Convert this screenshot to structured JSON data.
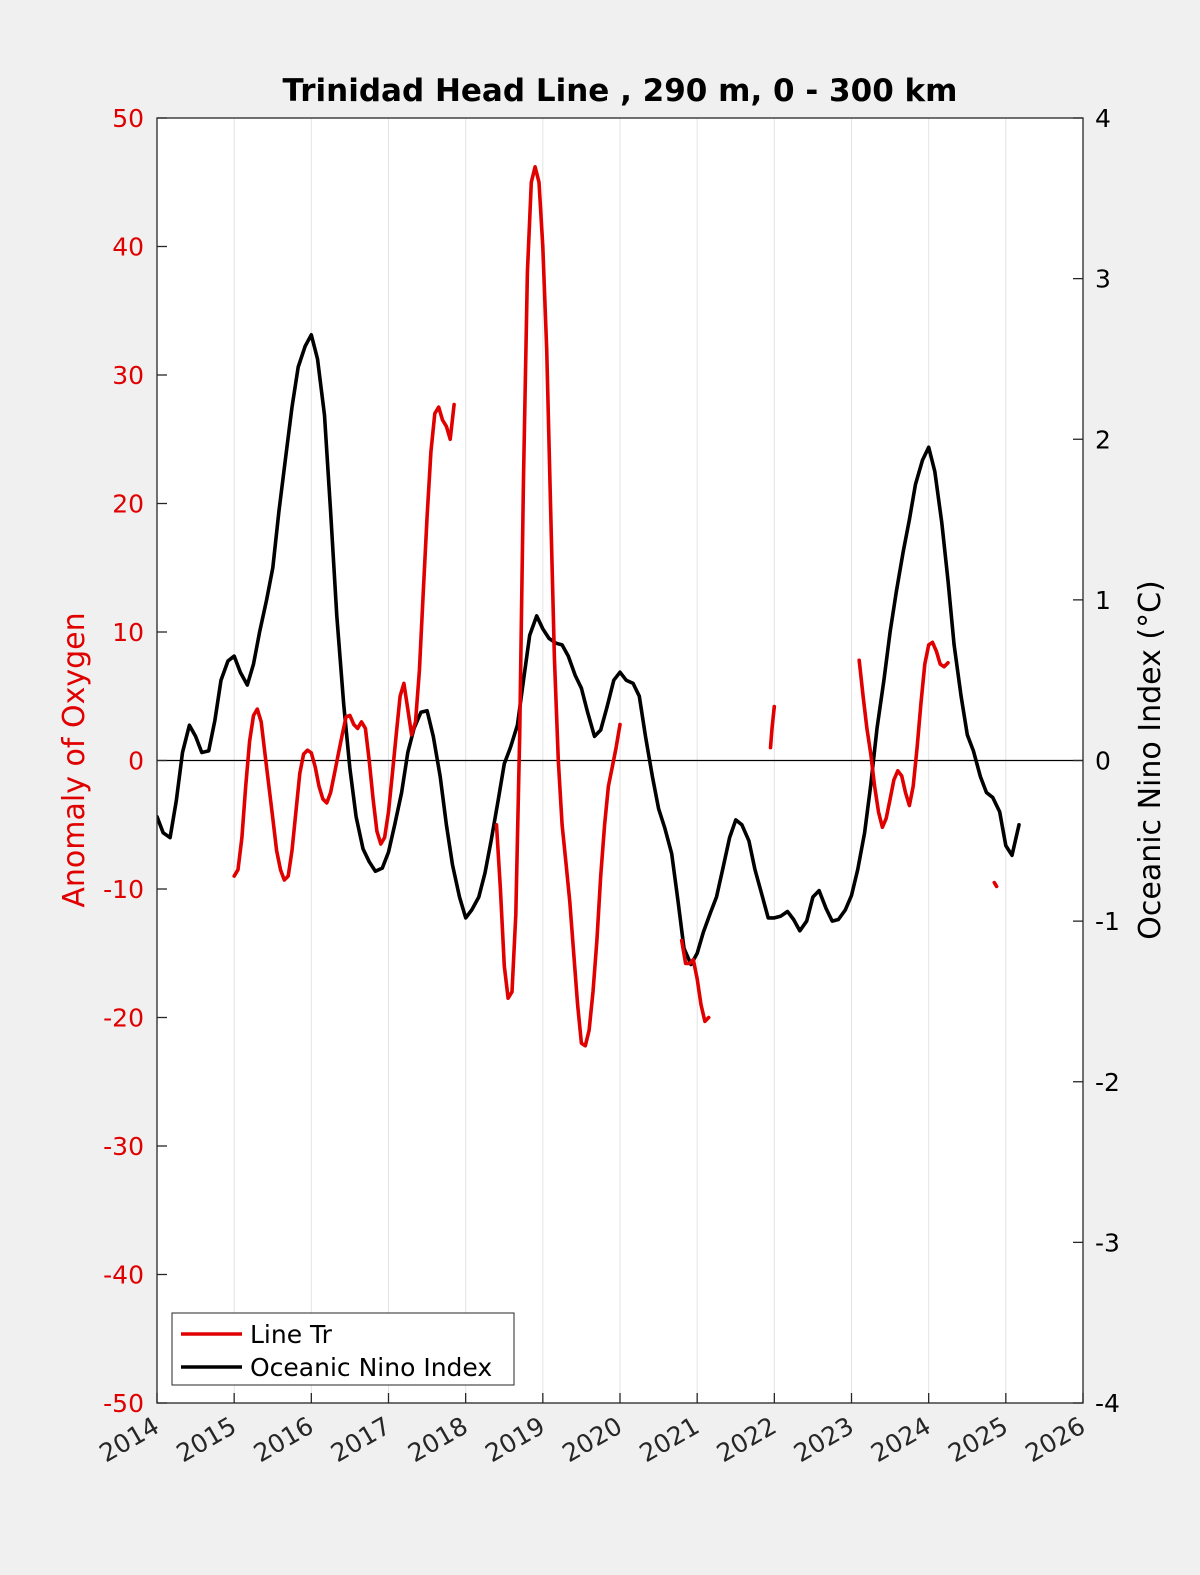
{
  "chart_data": {
    "type": "line",
    "title": "Trinidad Head Line , 290 m, 0 - 300 km",
    "xlabel": "",
    "ylabel_left": "Anomaly of Oxygen",
    "ylabel_right": "Oceanic Nino Index (°C)",
    "xlim": [
      2014,
      2026
    ],
    "ylim_left": [
      -50,
      50
    ],
    "ylim_right": [
      -4,
      4
    ],
    "x_ticks": [
      "2014",
      "2015",
      "2016",
      "2017",
      "2018",
      "2019",
      "2020",
      "2021",
      "2022",
      "2023",
      "2024",
      "2025",
      "2026"
    ],
    "y_left_ticks": [
      "50",
      "40",
      "30",
      "20",
      "10",
      "0",
      "-10",
      "-20",
      "-30",
      "-40",
      "-50"
    ],
    "y_right_ticks": [
      "4",
      "3",
      "2",
      "1",
      "0",
      "-1",
      "-2",
      "-3",
      "-4"
    ],
    "grid": "vertical",
    "legend_position": "bottom-left",
    "colors": {
      "oxygen": "#e00000",
      "oni": "#000000",
      "left_axis": "#e00000",
      "right_axis": "#000000"
    },
    "series": [
      {
        "name": "Line Tr",
        "axis": "left",
        "segments": [
          [
            [
              2015.0,
              -9
            ],
            [
              2015.05,
              -8.5
            ],
            [
              2015.1,
              -6
            ],
            [
              2015.15,
              -2
            ],
            [
              2015.2,
              1.5
            ],
            [
              2015.25,
              3.5
            ],
            [
              2015.3,
              4
            ],
            [
              2015.35,
              3
            ],
            [
              2015.4,
              0.5
            ],
            [
              2015.45,
              -2
            ],
            [
              2015.5,
              -4.5
            ],
            [
              2015.55,
              -7
            ],
            [
              2015.6,
              -8.5
            ],
            [
              2015.65,
              -9.3
            ],
            [
              2015.7,
              -9
            ],
            [
              2015.75,
              -7
            ],
            [
              2015.8,
              -4
            ],
            [
              2015.85,
              -1
            ],
            [
              2015.9,
              0.5
            ],
            [
              2015.95,
              0.8
            ],
            [
              2016.0,
              0.6
            ],
            [
              2016.05,
              -0.5
            ],
            [
              2016.1,
              -2
            ],
            [
              2016.15,
              -3
            ],
            [
              2016.2,
              -3.3
            ],
            [
              2016.25,
              -2.5
            ],
            [
              2016.3,
              -1
            ],
            [
              2016.35,
              0.5
            ],
            [
              2016.4,
              2
            ],
            [
              2016.45,
              3.4
            ],
            [
              2016.5,
              3.5
            ],
            [
              2016.55,
              2.8
            ],
            [
              2016.6,
              2.5
            ],
            [
              2016.65,
              3
            ],
            [
              2016.7,
              2.5
            ],
            [
              2016.75,
              0
            ],
            [
              2016.8,
              -3
            ],
            [
              2016.85,
              -5.5
            ],
            [
              2016.9,
              -6.5
            ],
            [
              2016.95,
              -6
            ],
            [
              2017.0,
              -4
            ],
            [
              2017.05,
              -1
            ],
            [
              2017.1,
              2
            ],
            [
              2017.15,
              5
            ],
            [
              2017.2,
              6
            ],
            [
              2017.25,
              4
            ],
            [
              2017.3,
              2
            ],
            [
              2017.35,
              3
            ],
            [
              2017.4,
              7
            ],
            [
              2017.45,
              13
            ],
            [
              2017.5,
              19
            ],
            [
              2017.55,
              24
            ],
            [
              2017.6,
              27
            ],
            [
              2017.65,
              27.5
            ],
            [
              2017.7,
              26.5
            ],
            [
              2017.75,
              26
            ],
            [
              2017.8,
              25
            ],
            [
              2017.85,
              27.7
            ]
          ],
          [
            [
              2018.4,
              -5
            ],
            [
              2018.45,
              -10
            ],
            [
              2018.5,
              -16
            ],
            [
              2018.55,
              -18.5
            ],
            [
              2018.6,
              -18
            ],
            [
              2018.65,
              -12
            ],
            [
              2018.7,
              2
            ],
            [
              2018.75,
              22
            ],
            [
              2018.8,
              38
            ],
            [
              2018.85,
              45
            ],
            [
              2018.9,
              46.2
            ],
            [
              2018.95,
              45
            ],
            [
              2019.0,
              40
            ],
            [
              2019.05,
              32
            ],
            [
              2019.1,
              20
            ],
            [
              2019.15,
              8
            ],
            [
              2019.2,
              0
            ],
            [
              2019.25,
              -5
            ],
            [
              2019.3,
              -8
            ],
            [
              2019.35,
              -11
            ],
            [
              2019.4,
              -15
            ],
            [
              2019.45,
              -19
            ],
            [
              2019.5,
              -22
            ],
            [
              2019.55,
              -22.2
            ],
            [
              2019.6,
              -21
            ],
            [
              2019.65,
              -18
            ],
            [
              2019.7,
              -14
            ],
            [
              2019.75,
              -9
            ],
            [
              2019.8,
              -5
            ],
            [
              2019.85,
              -2
            ],
            [
              2019.9,
              -0.5
            ],
            [
              2019.95,
              1
            ],
            [
              2020.0,
              2.8
            ]
          ],
          [
            [
              2020.8,
              -14
            ],
            [
              2020.85,
              -15.8
            ],
            [
              2020.9,
              -15.8
            ],
            [
              2020.95,
              -15.5
            ],
            [
              2021.0,
              -17
            ],
            [
              2021.05,
              -19
            ],
            [
              2021.1,
              -20.3
            ],
            [
              2021.15,
              -20
            ]
          ],
          [
            [
              2021.95,
              1
            ],
            [
              2021.97,
              2.5
            ],
            [
              2022.0,
              4.2
            ]
          ],
          [
            [
              2023.1,
              7.8
            ],
            [
              2023.15,
              5
            ],
            [
              2023.2,
              2.5
            ],
            [
              2023.25,
              0.5
            ],
            [
              2023.3,
              -2
            ],
            [
              2023.35,
              -4
            ],
            [
              2023.4,
              -5.2
            ],
            [
              2023.45,
              -4.5
            ],
            [
              2023.5,
              -3
            ],
            [
              2023.55,
              -1.5
            ],
            [
              2023.6,
              -0.8
            ],
            [
              2023.65,
              -1.2
            ],
            [
              2023.7,
              -2.5
            ],
            [
              2023.75,
              -3.5
            ],
            [
              2023.8,
              -2
            ],
            [
              2023.85,
              1
            ],
            [
              2023.9,
              4.5
            ],
            [
              2023.95,
              7.5
            ],
            [
              2024.0,
              9
            ],
            [
              2024.05,
              9.2
            ],
            [
              2024.1,
              8.5
            ],
            [
              2024.15,
              7.5
            ],
            [
              2024.2,
              7.3
            ],
            [
              2024.25,
              7.6
            ]
          ],
          [
            [
              2024.85,
              -9.5
            ],
            [
              2024.88,
              -9.8
            ]
          ]
        ]
      },
      {
        "name": "Oceanic Nino Index",
        "axis": "right",
        "segments": [
          [
            [
              2014.0,
              -0.35
            ],
            [
              2014.08,
              -0.45
            ],
            [
              2014.17,
              -0.48
            ],
            [
              2014.25,
              -0.25
            ],
            [
              2014.33,
              0.05
            ],
            [
              2014.42,
              0.22
            ],
            [
              2014.5,
              0.15
            ],
            [
              2014.58,
              0.05
            ],
            [
              2014.67,
              0.06
            ],
            [
              2014.75,
              0.25
            ],
            [
              2014.83,
              0.5
            ],
            [
              2014.92,
              0.62
            ],
            [
              2015.0,
              0.65
            ],
            [
              2015.08,
              0.55
            ],
            [
              2015.17,
              0.47
            ],
            [
              2015.25,
              0.6
            ],
            [
              2015.33,
              0.8
            ],
            [
              2015.42,
              1.0
            ],
            [
              2015.5,
              1.2
            ],
            [
              2015.58,
              1.55
            ],
            [
              2015.67,
              1.9
            ],
            [
              2015.75,
              2.2
            ],
            [
              2015.83,
              2.45
            ],
            [
              2015.92,
              2.58
            ],
            [
              2016.0,
              2.65
            ],
            [
              2016.08,
              2.5
            ],
            [
              2016.17,
              2.15
            ],
            [
              2016.25,
              1.55
            ],
            [
              2016.33,
              0.9
            ],
            [
              2016.42,
              0.35
            ],
            [
              2016.5,
              -0.05
            ],
            [
              2016.58,
              -0.35
            ],
            [
              2016.67,
              -0.55
            ],
            [
              2016.75,
              -0.63
            ],
            [
              2016.83,
              -0.69
            ],
            [
              2016.92,
              -0.67
            ],
            [
              2017.0,
              -0.57
            ],
            [
              2017.08,
              -0.4
            ],
            [
              2017.17,
              -0.2
            ],
            [
              2017.25,
              0.05
            ],
            [
              2017.33,
              0.2
            ],
            [
              2017.42,
              0.3
            ],
            [
              2017.5,
              0.31
            ],
            [
              2017.58,
              0.15
            ],
            [
              2017.67,
              -0.1
            ],
            [
              2017.75,
              -0.4
            ],
            [
              2017.83,
              -0.65
            ],
            [
              2017.92,
              -0.85
            ],
            [
              2018.0,
              -0.98
            ],
            [
              2018.08,
              -0.93
            ],
            [
              2018.17,
              -0.85
            ],
            [
              2018.25,
              -0.7
            ],
            [
              2018.33,
              -0.5
            ],
            [
              2018.42,
              -0.25
            ],
            [
              2018.5,
              -0.02
            ],
            [
              2018.58,
              0.08
            ],
            [
              2018.67,
              0.22
            ],
            [
              2018.75,
              0.5
            ],
            [
              2018.83,
              0.78
            ],
            [
              2018.92,
              0.9
            ],
            [
              2019.0,
              0.82
            ],
            [
              2019.08,
              0.76
            ],
            [
              2019.17,
              0.73
            ],
            [
              2019.25,
              0.72
            ],
            [
              2019.33,
              0.65
            ],
            [
              2019.42,
              0.53
            ],
            [
              2019.5,
              0.45
            ],
            [
              2019.58,
              0.3
            ],
            [
              2019.67,
              0.15
            ],
            [
              2019.75,
              0.19
            ],
            [
              2019.83,
              0.33
            ],
            [
              2019.92,
              0.5
            ],
            [
              2020.0,
              0.55
            ],
            [
              2020.08,
              0.5
            ],
            [
              2020.17,
              0.48
            ],
            [
              2020.25,
              0.4
            ],
            [
              2020.33,
              0.15
            ],
            [
              2020.42,
              -0.1
            ],
            [
              2020.5,
              -0.3
            ],
            [
              2020.58,
              -0.42
            ],
            [
              2020.67,
              -0.58
            ],
            [
              2020.75,
              -0.87
            ],
            [
              2020.83,
              -1.17
            ],
            [
              2020.92,
              -1.27
            ],
            [
              2021.0,
              -1.2
            ],
            [
              2021.08,
              -1.07
            ],
            [
              2021.17,
              -0.95
            ],
            [
              2021.25,
              -0.85
            ],
            [
              2021.33,
              -0.68
            ],
            [
              2021.42,
              -0.48
            ],
            [
              2021.5,
              -0.37
            ],
            [
              2021.58,
              -0.4
            ],
            [
              2021.67,
              -0.5
            ],
            [
              2021.75,
              -0.68
            ],
            [
              2021.83,
              -0.82
            ],
            [
              2021.92,
              -0.98
            ],
            [
              2022.0,
              -0.98
            ],
            [
              2022.08,
              -0.97
            ],
            [
              2022.17,
              -0.94
            ],
            [
              2022.25,
              -0.99
            ],
            [
              2022.33,
              -1.06
            ],
            [
              2022.42,
              -1.0
            ],
            [
              2022.5,
              -0.85
            ],
            [
              2022.58,
              -0.81
            ],
            [
              2022.67,
              -0.92
            ],
            [
              2022.75,
              -1.0
            ],
            [
              2022.83,
              -0.99
            ],
            [
              2022.92,
              -0.93
            ],
            [
              2023.0,
              -0.84
            ],
            [
              2023.08,
              -0.68
            ],
            [
              2023.17,
              -0.45
            ],
            [
              2023.25,
              -0.15
            ],
            [
              2023.33,
              0.2
            ],
            [
              2023.42,
              0.5
            ],
            [
              2023.5,
              0.8
            ],
            [
              2023.58,
              1.05
            ],
            [
              2023.67,
              1.3
            ],
            [
              2023.75,
              1.5
            ],
            [
              2023.83,
              1.72
            ],
            [
              2023.92,
              1.87
            ],
            [
              2024.0,
              1.95
            ],
            [
              2024.08,
              1.8
            ],
            [
              2024.17,
              1.48
            ],
            [
              2024.25,
              1.12
            ],
            [
              2024.33,
              0.72
            ],
            [
              2024.42,
              0.4
            ],
            [
              2024.5,
              0.16
            ],
            [
              2024.58,
              0.06
            ],
            [
              2024.67,
              -0.1
            ],
            [
              2024.75,
              -0.2
            ],
            [
              2024.83,
              -0.23
            ],
            [
              2024.92,
              -0.32
            ],
            [
              2025.0,
              -0.53
            ],
            [
              2025.08,
              -0.59
            ],
            [
              2025.17,
              -0.4
            ]
          ]
        ]
      }
    ]
  }
}
